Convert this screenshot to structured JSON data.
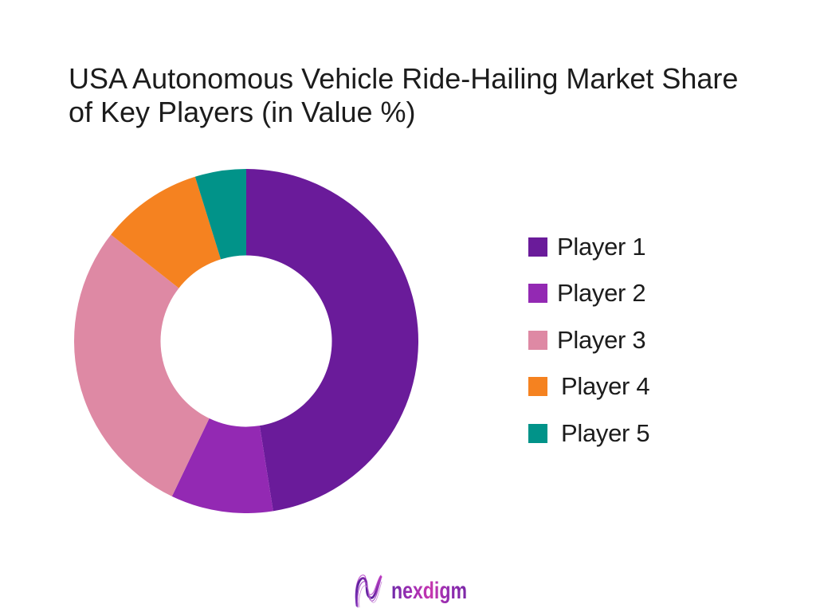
{
  "title": "USA Autonomous Vehicle Ride-Hailing Market Share of Key Players (in Value %)",
  "chart_data": {
    "type": "pie",
    "subtype": "donut",
    "title": "USA Autonomous Vehicle Ride-Hailing Market Share of Key Players (in Value %)",
    "labels": [
      "Player 1",
      "Player 2",
      "Player 3",
      "Player 4",
      "Player 5"
    ],
    "values": [
      47.5,
      9.6,
      28.5,
      9.6,
      4.8
    ],
    "unit": "percent",
    "colors": [
      "#6A1B9A",
      "#9329B3",
      "#DE89A4",
      "#F58220",
      "#019389"
    ],
    "start_angle_deg": 0,
    "direction": "clockwise",
    "donut_hole_ratio": 0.5,
    "legend_position": "right"
  },
  "legend": {
    "items": [
      {
        "label": "Player 1",
        "color": "#6A1B9A"
      },
      {
        "label": "Player 2",
        "color": "#9329B3"
      },
      {
        "label": "Player 3",
        "color": "#DE89A4"
      },
      {
        "label": "Player 4",
        "color": "#F58220"
      },
      {
        "label": "Player 5",
        "color": "#019389"
      }
    ]
  },
  "footer": {
    "brand": "nexdigm"
  },
  "colors": {
    "background": "#FFFFFF",
    "title_text": "#1C1C1C",
    "brand_gradient": [
      "#5E2DA8",
      "#A431B4",
      "#C936AE",
      "#8E2CAD",
      "#7A28A6"
    ]
  }
}
